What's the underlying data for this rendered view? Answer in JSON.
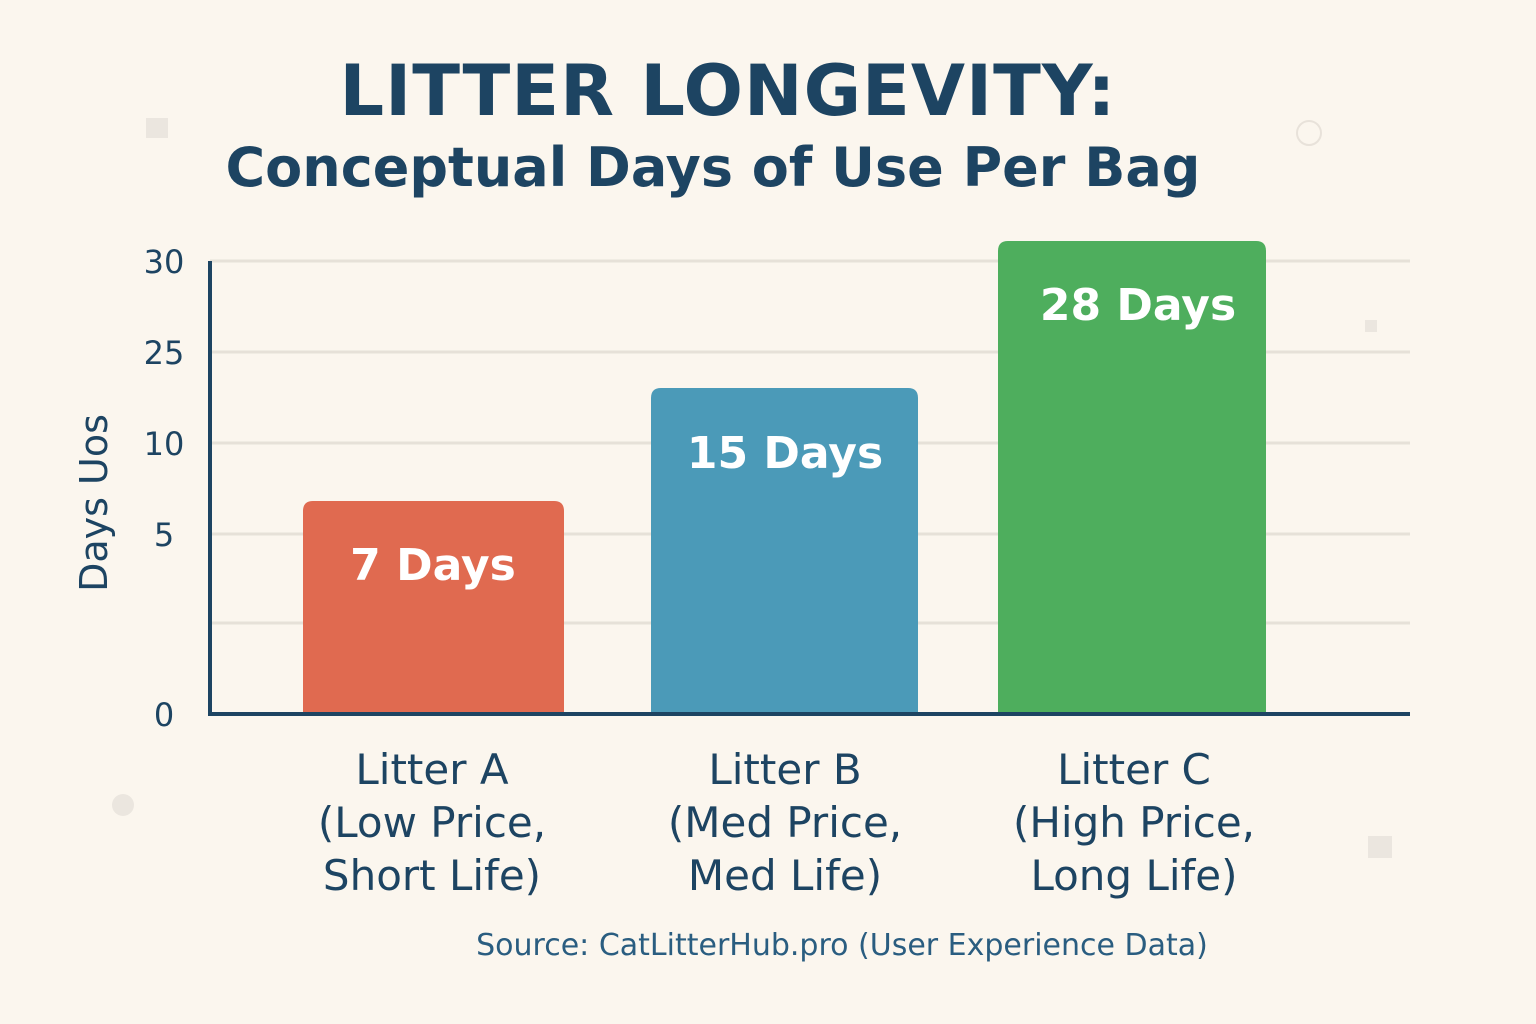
{
  "chart_data": {
    "type": "bar",
    "title": "LITTER LONGEVITY:",
    "subtitle": "Conceptual Days of Use Per Bag",
    "ylabel": "Days Uos",
    "xlabel": "",
    "categories": [
      [
        "Litter A",
        "(Low Price,",
        "Short Life)"
      ],
      [
        "Litter B",
        "(Med Price,",
        "Med Life)"
      ],
      [
        "Litter C",
        "(High Price,",
        "Long Life)"
      ]
    ],
    "values": [
      7,
      15,
      28
    ],
    "value_labels": [
      "7 Days",
      "15 Days",
      "28 Days"
    ],
    "bar_colors": [
      "#e06a50",
      "#4b9ab8",
      "#4eae5d"
    ],
    "y_ticks": [
      "0",
      "5",
      "10",
      "25",
      "30"
    ],
    "ylim": [
      0,
      30
    ],
    "grid": true,
    "source": "Source: CatLitterHub.pro (User Experience Data)"
  }
}
